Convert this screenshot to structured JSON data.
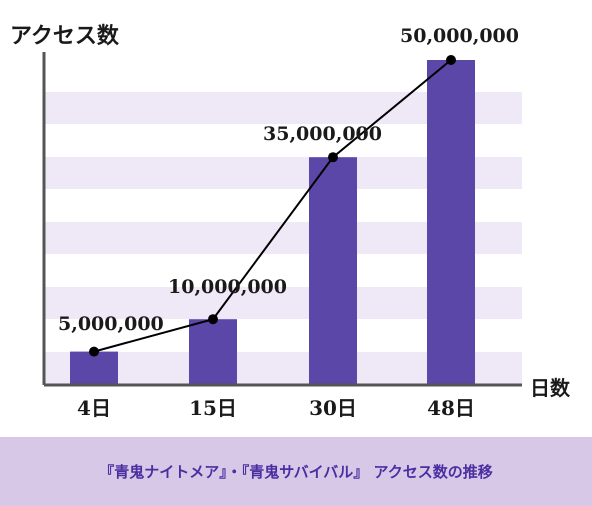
{
  "chart_data": {
    "type": "bar",
    "categories": [
      "4日",
      "15日",
      "30日",
      "48日"
    ],
    "values": [
      5000000,
      10000000,
      35000000,
      50000000
    ],
    "value_labels": [
      "5,000,000",
      "10,000,000",
      "35,000,000",
      "50,000,000"
    ],
    "line_overlay": true,
    "ylabel": "アクセス数",
    "xlabel": "日数",
    "ylim": [
      0,
      50000000
    ],
    "grid": "alternating horizontal bands",
    "colors": {
      "bar": "#5b47a8",
      "band": "#efe8f7",
      "line": "#000000",
      "text": "#1a1a1a"
    }
  },
  "caption": "『青鬼ナイトメア』・『青鬼サバイバル』 アクセス数の推移",
  "colors": {
    "caption_bg": "#d8c8e8",
    "caption_text": "#4a2fa0"
  }
}
